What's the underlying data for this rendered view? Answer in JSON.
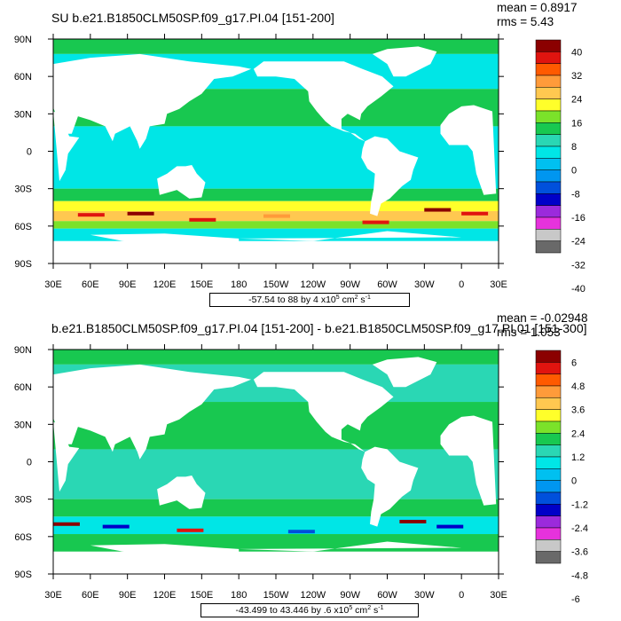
{
  "panels": [
    {
      "title": "SU b.e21.B1850CLM50SP.f09_g17.PI.04 [151-200]",
      "mean_text": "mean = 0.8917",
      "rms_text": "rms = 5.43",
      "range_prefix": "-57.54 to 88 by 4 x10",
      "range_exp": "5",
      "range_unit": " cm",
      "range_unit_exp": "2",
      "range_suffix": " s",
      "range_suffix_exp": "-1",
      "colorbar_labels": [
        "40",
        "32",
        "24",
        "16",
        "8",
        "0",
        "-8",
        "-16",
        "-24",
        "-32",
        "-40"
      ]
    },
    {
      "title": "b.e21.B1850CLM50SP.f09_g17.PI.04 [151-200] - b.e21.B1850CLM50SP.f09_g17.PI.01 [151-300]",
      "mean_text": "mean = -0.02948",
      "rms_text": "rms = 1.053",
      "range_prefix": "-43.499 to 43.446 by .6 x10",
      "range_exp": "5",
      "range_unit": " cm",
      "range_unit_exp": "2",
      "range_suffix": " s",
      "range_suffix_exp": "-1",
      "colorbar_labels": [
        "6",
        "4.8",
        "3.6",
        "2.4",
        "1.2",
        "0",
        "-1.2",
        "-2.4",
        "-3.6",
        "-4.8",
        "-6"
      ]
    }
  ],
  "axes": {
    "lat_labels": [
      "90N",
      "60N",
      "30N",
      "0",
      "30S",
      "60S",
      "90S"
    ],
    "lon_labels": [
      "30E",
      "60E",
      "90E",
      "120E",
      "150E",
      "180",
      "150W",
      "120W",
      "90W",
      "60W",
      "30W",
      "0",
      "30E"
    ]
  },
  "colorbar_colors": [
    "#8b0000",
    "#e0140f",
    "#ff5a00",
    "#ff9b3a",
    "#ffc850",
    "#ffff2a",
    "#7be22a",
    "#18c850",
    "#2ad7b4",
    "#00e6e6",
    "#00c0f0",
    "#0096f0",
    "#0050dc",
    "#0000c8",
    "#9b2adc",
    "#e632dc",
    "#c8c8c8",
    "#696969"
  ],
  "chart_data": [
    {
      "type": "heatmap",
      "title": "SU b.e21.B1850CLM50SP.f09_g17.PI.04 [151-200]",
      "x_ticks": [
        "30E",
        "60E",
        "90E",
        "120E",
        "150E",
        "180",
        "150W",
        "120W",
        "90W",
        "60W",
        "30W",
        "0",
        "30E"
      ],
      "y_ticks": [
        "90N",
        "60N",
        "30N",
        "0",
        "30S",
        "60S",
        "90S"
      ],
      "contour_levels": [
        -40,
        -36,
        -32,
        -28,
        -24,
        -20,
        -16,
        -12,
        -8,
        -4,
        0,
        4,
        8,
        12,
        16,
        20,
        24,
        28,
        32,
        36,
        40
      ],
      "range_min": -57.54,
      "range_max": 88,
      "interval": 4,
      "scale": "x10^5 cm^2 s^-1",
      "mean": 0.8917,
      "rms": 5.43
    },
    {
      "type": "heatmap",
      "title": "b.e21.B1850CLM50SP.f09_g17.PI.04 [151-200] - b.e21.B1850CLM50SP.f09_g17.PI.01 [151-300]",
      "x_ticks": [
        "30E",
        "60E",
        "90E",
        "120E",
        "150E",
        "180",
        "150W",
        "120W",
        "90W",
        "60W",
        "30W",
        "0",
        "30E"
      ],
      "y_ticks": [
        "90N",
        "60N",
        "30N",
        "0",
        "30S",
        "60S",
        "90S"
      ],
      "contour_levels": [
        -6,
        -4.8,
        -3.6,
        -2.4,
        -1.2,
        0,
        1.2,
        2.4,
        3.6,
        4.8,
        6
      ],
      "range_min": -43.499,
      "range_max": 43.446,
      "interval": 0.6,
      "scale": "x10^5 cm^2 s^-1",
      "mean": -0.02948,
      "rms": 1.053
    }
  ]
}
